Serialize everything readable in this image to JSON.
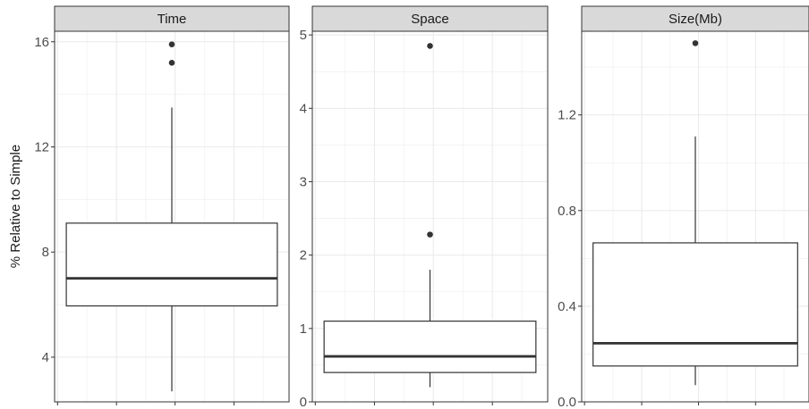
{
  "chart_data": {
    "type": "boxplot",
    "ylabel": "% Relative to Simple",
    "grid": true,
    "facets": [
      {
        "title": "Time",
        "ylim": [
          2.3,
          16.4
        ],
        "yticks": [
          4,
          8,
          12,
          16
        ],
        "ytick_labels": [
          "4",
          "8",
          "12",
          "16"
        ],
        "box": {
          "min": 2.7,
          "q1": 5.95,
          "median": 7.0,
          "q3": 9.1,
          "max": 13.5
        },
        "outliers": [
          15.2,
          15.9
        ]
      },
      {
        "title": "Space",
        "ylim": [
          0,
          5.05
        ],
        "yticks": [
          0,
          1,
          2,
          3,
          4,
          5
        ],
        "ytick_labels": [
          "0",
          "1",
          "2",
          "3",
          "4",
          "5"
        ],
        "box": {
          "min": 0.2,
          "q1": 0.4,
          "median": 0.62,
          "q3": 1.1,
          "max": 1.8
        },
        "outliers": [
          2.28,
          4.85
        ]
      },
      {
        "title": "Size(Mb)",
        "ylim": [
          0,
          1.55
        ],
        "yticks": [
          0.0,
          0.4,
          0.8,
          1.2
        ],
        "ytick_labels": [
          "0.0",
          "0.4",
          "0.8",
          "1.2"
        ],
        "box": {
          "min": 0.07,
          "q1": 0.15,
          "median": 0.245,
          "q3": 0.665,
          "max": 1.11
        },
        "outliers": [
          1.5
        ]
      }
    ]
  }
}
